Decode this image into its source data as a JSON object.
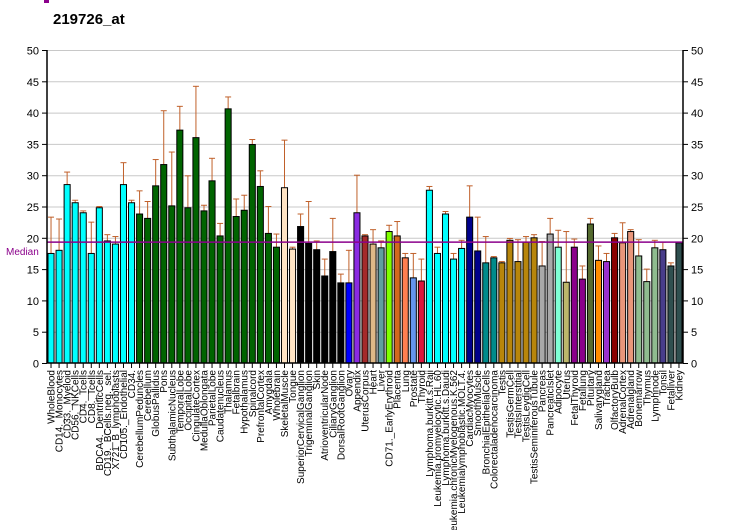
{
  "chart_data": {
    "type": "bar",
    "title": "219726_at",
    "xlabel": "",
    "ylabel": "",
    "ylim": [
      0,
      50
    ],
    "yticks": [
      0,
      5,
      10,
      15,
      20,
      25,
      30,
      35,
      40,
      45,
      50
    ],
    "grid": true,
    "median": 19.3,
    "median_label": "Median",
    "median_color": "#8b008b",
    "error_color": "#c0602a",
    "categories": [
      "WholeBlood",
      "CD14._Monocytes",
      "CD33._Myeloid",
      "CD56._NKCells",
      "CD4._Tcells",
      "CD8._Tcells",
      "BDCA4._DentriticCells",
      "CD19._BCells.neg._sel.",
      "X721_B_lymphoblasts",
      "CD105._Endothelial",
      "CD34.",
      "CerebellumPeduncles",
      "Cerebellum",
      "GlobusPallidus",
      "Pons",
      "SubthalamicNucleus",
      "TemporalLobe",
      "OccipitalLobe",
      "CingulateCortex",
      "MedullaOblongata",
      "ParietalLobe",
      "Caudatenucleus",
      "Thalamus",
      "Fetalbrain",
      "Hypothalamus",
      "Spinalcord",
      "PrefrontalCortex",
      "Amygdala",
      "Wholebrain",
      "SkeletalMuscle",
      "Tongue",
      "SuperiorCervicalGanglion",
      "TrigeminalGanglion",
      "Skin",
      "AtrioventricularNode",
      "CiliaryGanglion",
      "DorsalRootGanglion",
      "Ovary",
      "Appendix",
      "UterusCorpus",
      "Heart",
      "Liver",
      "CD71._EarlyErythroid",
      "Placenta",
      "Lung",
      "Prostate",
      "Thyroid",
      "Lymphoma.burkitt.s.Raji",
      "Leukemia.promyelocytic.HL.60",
      "Lymphoma.burkitt.s.Daudi",
      "Leukemia.chronicMyelogenous.K.562",
      "Leukemialymphoblastic.MOLT.4.",
      "CardiacMyocytes",
      "SmoothMuscle",
      "BronchialEpithelialCells",
      "Colorectaladenocarcinoma",
      "Testis",
      "TestisGermCell",
      "TestisInterstitial",
      "TestisLeydigCell",
      "TestisSeminiferousTubule",
      "Pancreas",
      "PancreaticIslet",
      "Adipocyte",
      "Uterus",
      "FetalThyroid",
      "Fetallung",
      "Pituitary",
      "Salivarygland",
      "Trachea",
      "OlfactoryBulb",
      "AdrenalCortex",
      "Adrenalgland",
      "Bonemarrow",
      "Thymus",
      "Lymphnode",
      "Tonsil",
      "Fetalliver",
      "Kidney"
    ],
    "values": [
      17.5,
      18,
      28.5,
      25.6,
      24,
      17.5,
      24.8,
      19.5,
      19,
      28.5,
      25.6,
      23.8,
      23.1,
      28.3,
      31.7,
      25.1,
      37.2,
      24.8,
      36,
      24.3,
      29.1,
      20.3,
      40.6,
      23.4,
      24.4,
      34.9,
      28.2,
      20.7,
      18.5,
      28,
      18.2,
      21.8,
      19.1,
      18.1,
      13.9,
      17.8,
      12.8,
      12.8,
      24,
      20.3,
      19,
      18.4,
      21,
      20.3,
      16.8,
      13.6,
      13.1,
      27.6,
      17.5,
      23.8,
      16.6,
      18.3,
      23.3,
      17.9,
      16,
      16.8,
      16,
      19.6,
      16.2,
      19.3,
      20,
      15.5,
      20.6,
      18.5,
      12.9,
      18.5,
      13.4,
      22.2,
      16.4,
      16.2,
      20,
      19.2,
      21,
      17.1,
      13,
      18.4,
      18.1,
      15.5,
      19.2
    ],
    "error_upper": [
      23.3,
      23,
      30.5,
      26,
      24.3,
      22.5,
      25,
      20.5,
      20.2,
      32,
      26,
      27.5,
      25.8,
      32.5,
      40.3,
      33.7,
      41,
      29.9,
      44.2,
      25.2,
      32.7,
      22.3,
      42.5,
      26.2,
      26.8,
      35.7,
      30.7,
      25,
      20.6,
      35.6,
      18.5,
      23.8,
      25.8,
      19.5,
      16.6,
      23.1,
      14.2,
      18,
      30,
      20.5,
      21.3,
      19.5,
      22,
      22.6,
      17.5,
      17.5,
      16.6,
      28.2,
      18.5,
      24.2,
      17.5,
      19.6,
      28.3,
      23.3,
      20.2,
      17,
      16.2,
      19.9,
      19.7,
      20.2,
      20.5,
      19.4,
      23.1,
      21.2,
      21,
      19.8,
      15.5,
      23.1,
      18.7,
      17.5,
      20.7,
      22.4,
      21.3,
      19.7,
      15,
      19.6,
      19.3,
      16,
      19.2
    ],
    "colors": [
      "#00ffff",
      "#00ffff",
      "#00ffff",
      "#00ffff",
      "#00ffff",
      "#00ffff",
      "#00ffff",
      "#00ffff",
      "#00ffff",
      "#00ffff",
      "#00ffff",
      "#006400",
      "#006400",
      "#006400",
      "#006400",
      "#006400",
      "#006400",
      "#006400",
      "#006400",
      "#006400",
      "#006400",
      "#006400",
      "#006400",
      "#006400",
      "#006400",
      "#006400",
      "#006400",
      "#006400",
      "#006400",
      "#ffe4c4",
      "#ffe4c4",
      "#000000",
      "#000000",
      "#000000",
      "#000000",
      "#000000",
      "#000000",
      "#0000ff",
      "#8a2be2",
      "#a52a2a",
      "#deb887",
      "#5f9ea0",
      "#7fff00",
      "#d2691e",
      "#ff7f50",
      "#6495ed",
      "#dc143c",
      "#00ffff",
      "#00ffff",
      "#00ffff",
      "#00ffff",
      "#00ffff",
      "#00008b",
      "#00008b",
      "#008b8b",
      "#008b8b",
      "#b8860b",
      "#b8860b",
      "#b8860b",
      "#b8860b",
      "#b8860b",
      "#a9a9a9",
      "#a9a9a9",
      "#7fffd4",
      "#bdb76b",
      "#8b008b",
      "#8b008b",
      "#556b2f",
      "#ff8c00",
      "#9932cc",
      "#8b0000",
      "#e9967a",
      "#e9967a",
      "#8fbc8f",
      "#8fbc8f",
      "#8fbc8f",
      "#483d8b",
      "#2f4f4f",
      "#2f4f4f"
    ]
  }
}
